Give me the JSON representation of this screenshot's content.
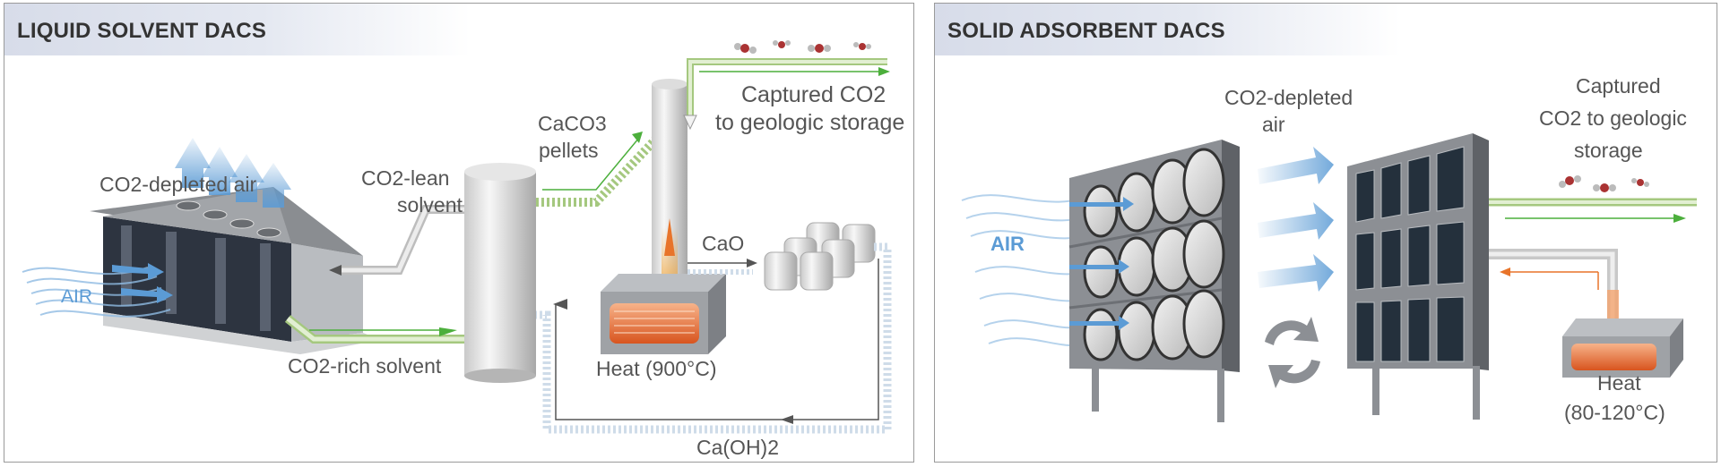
{
  "left_panel": {
    "title": "LIQUID SOLVENT DACS",
    "labels": {
      "air": "AIR",
      "co2_depleted_air": "CO2-depleted air",
      "co2_lean": "CO2-lean",
      "solvent": "solvent",
      "caco3": "CaCO3",
      "pellets": "pellets",
      "captured_line1": "Captured CO2",
      "captured_line2": "to geologic storage",
      "cao": "CaO",
      "co2_rich_solvent": "CO2-rich solvent",
      "heat": "Heat (900°C)",
      "caoh2": "Ca(OH)2"
    }
  },
  "right_panel": {
    "title": "SOLID ADSORBENT DACS",
    "labels": {
      "air": "AIR",
      "depleted_line1": "CO2-depleted",
      "depleted_line2": "air",
      "captured_line1": "Captured",
      "captured_line2": "CO2 to geologic",
      "captured_line3": "storage",
      "heat_line1": "Heat",
      "heat_line2": "(80-120°C)"
    }
  },
  "colors": {
    "header_bg": "#d7dce9",
    "air_blue": "#5b9bd5",
    "arrow_green": "#4caf3c",
    "heat_orange": "#e8742a",
    "equipment_gray": "#8c8f94",
    "pipe_gray": "#d8d8d8"
  }
}
